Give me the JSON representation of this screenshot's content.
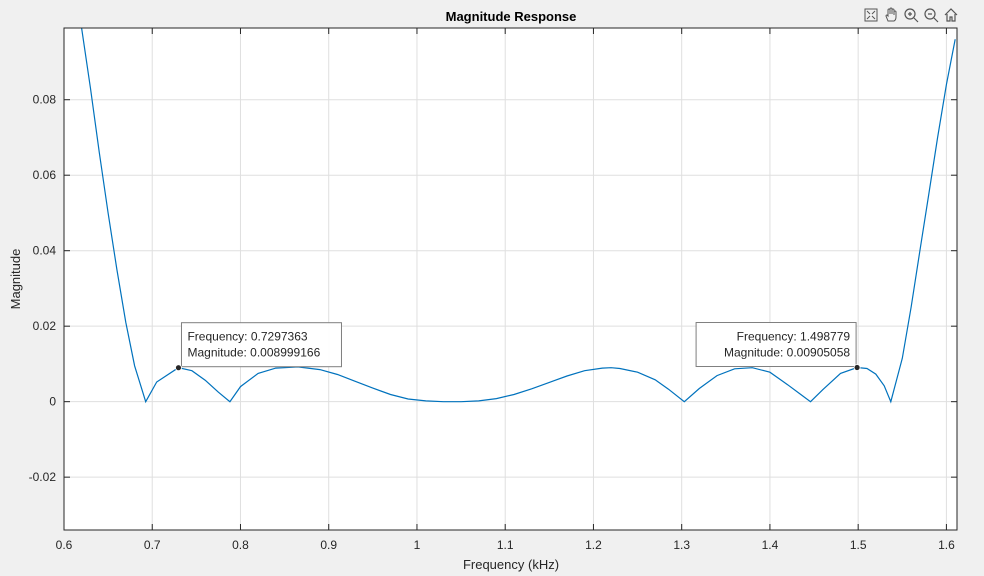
{
  "figure": {
    "title": "Magnitude Response",
    "toolbar": [
      {
        "name": "restore-view-icon"
      },
      {
        "name": "pan-hand-icon"
      },
      {
        "name": "zoom-in-icon"
      },
      {
        "name": "zoom-out-icon"
      },
      {
        "name": "home-icon"
      }
    ]
  },
  "chart_data": {
    "type": "line",
    "title": "Magnitude Response",
    "xlabel": "Frequency (kHz)",
    "ylabel": "Magnitude",
    "xlim": [
      0.6,
      1.612
    ],
    "ylim": [
      -0.034,
      0.099
    ],
    "xticks": [
      0.6,
      0.7,
      0.8,
      0.9,
      1,
      1.1,
      1.2,
      1.3,
      1.4,
      1.5,
      1.6
    ],
    "xtick_labels": [
      "0.6",
      "0.7",
      "0.8",
      "0.9",
      "1",
      "1.1",
      "1.2",
      "1.3",
      "1.4",
      "1.5",
      "1.6"
    ],
    "yticks": [
      -0.02,
      0,
      0.02,
      0.04,
      0.06,
      0.08
    ],
    "ytick_labels": [
      "-0.02",
      "0",
      "0.02",
      "0.04",
      "0.06",
      "0.08"
    ],
    "grid": true,
    "line_color": "#0072bd",
    "series": [
      {
        "x": [
          0.62,
          0.63,
          0.64,
          0.65,
          0.66,
          0.67,
          0.68,
          0.6926,
          0.705,
          0.7297,
          0.745,
          0.76,
          0.775,
          0.788,
          0.8,
          0.82,
          0.84,
          0.865,
          0.89,
          0.91,
          0.93,
          0.95,
          0.97,
          0.99,
          1.01,
          1.03,
          1.05,
          1.07,
          1.09,
          1.11,
          1.13,
          1.15,
          1.17,
          1.19,
          1.21,
          1.22,
          1.23,
          1.25,
          1.27,
          1.285,
          1.303,
          1.32,
          1.34,
          1.36,
          1.38,
          1.4,
          1.42,
          1.435,
          1.446,
          1.46,
          1.48,
          1.4988,
          1.51,
          1.52,
          1.5295,
          1.537,
          1.55,
          1.56,
          1.57,
          1.58,
          1.59,
          1.6,
          1.61
        ],
        "y": [
          0.099,
          0.083,
          0.066,
          0.05,
          0.035,
          0.021,
          0.0095,
          0.0,
          0.0052,
          0.009,
          0.0082,
          0.0057,
          0.0025,
          0.0,
          0.004,
          0.0075,
          0.0089,
          0.0092,
          0.0085,
          0.0072,
          0.0054,
          0.0036,
          0.0019,
          0.0007,
          0.0002,
          0.0,
          0.0,
          0.0002,
          0.0008,
          0.0019,
          0.0034,
          0.0051,
          0.0068,
          0.0082,
          0.0089,
          0.009,
          0.0088,
          0.0078,
          0.0058,
          0.0033,
          0.0,
          0.0035,
          0.0069,
          0.0087,
          0.009,
          0.0078,
          0.0045,
          0.0019,
          0.0,
          0.0032,
          0.0075,
          0.00905,
          0.0088,
          0.0073,
          0.0042,
          0.0,
          0.0115,
          0.025,
          0.04,
          0.055,
          0.07,
          0.084,
          0.096
        ]
      }
    ],
    "datatips": [
      {
        "x": 0.7297363,
        "y": 0.008999166,
        "freq_label": "Frequency: 0.7297363",
        "mag_label": "Magnitude: 0.008999166",
        "side": "right"
      },
      {
        "x": 1.498779,
        "y": 0.00905058,
        "freq_label": "Frequency: 1.498779",
        "mag_label": "Magnitude: 0.00905058",
        "side": "left"
      }
    ]
  }
}
